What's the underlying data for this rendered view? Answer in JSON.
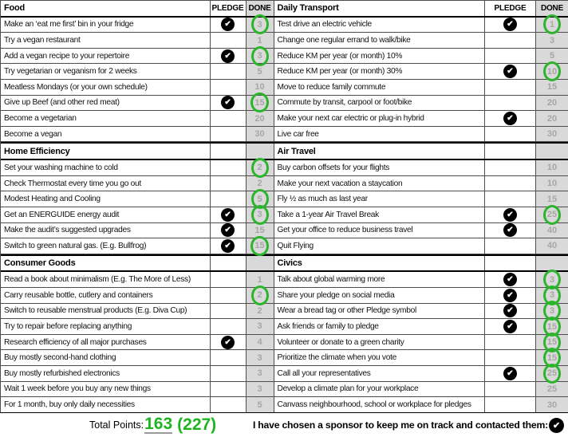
{
  "colors": {
    "green": "#1fb41f",
    "circle_green": "#2db42d",
    "done_column_fill": "#d9d9d9",
    "points_gray": "#a6a6a6",
    "check_black": "#000000"
  },
  "icons": {
    "check": "✔"
  },
  "tables": [
    {
      "name": "left",
      "header": {
        "title": "Food",
        "pledge": "PLEDGE",
        "done": "DONE"
      },
      "rows": [
        {
          "label": "Make an ‘eat me first’ bin in your fridge",
          "pledged": true,
          "points": "3",
          "circled": true
        },
        {
          "label": "Try a vegan restaurant",
          "pledged": false,
          "points": "1",
          "circled": false
        },
        {
          "label": "Add a vegan recipe to your repertoire",
          "pledged": true,
          "points": "3",
          "circled": true
        },
        {
          "label": "Try vegetarian or veganism for 2 weeks",
          "pledged": false,
          "points": "5",
          "circled": false
        },
        {
          "label": "Meatless Mondays (or your own schedule)",
          "pledged": false,
          "points": "10",
          "circled": false
        },
        {
          "label": "Give up Beef (and other red meat)",
          "pledged": true,
          "points": "15",
          "circled": true
        },
        {
          "label": "Become a vegetarian",
          "pledged": false,
          "points": "20",
          "circled": false
        },
        {
          "label": "Become a vegan",
          "pledged": false,
          "points": "30",
          "circled": false
        },
        {
          "section": "Home Efficiency"
        },
        {
          "label": "Set your washing machine to cold",
          "pledged": false,
          "points": "2",
          "circled": true
        },
        {
          "label": "Check Thermostat every time you go out",
          "pledged": false,
          "points": "2",
          "circled": false
        },
        {
          "label": "Modest Heating and Cooling",
          "pledged": false,
          "points": "5",
          "circled": true
        },
        {
          "label": "Get an ENERGUIDE energy audit",
          "pledged": true,
          "points": "3",
          "circled": true
        },
        {
          "label": "Make the audit’s suggested upgrades",
          "pledged": true,
          "points": "15",
          "circled": false
        },
        {
          "label": "Switch to green natural gas. (E.g. Bullfrog)",
          "pledged": true,
          "points": "15",
          "circled": true
        },
        {
          "section": "Consumer Goods"
        },
        {
          "label": "Read a book about minimalism (E.g. The More of Less)",
          "pledged": false,
          "points": "1",
          "circled": false
        },
        {
          "label": "Carry reusable bottle, cutlery and containers",
          "pledged": false,
          "points": "2",
          "circled": true
        },
        {
          "label": "Switch to reusable menstrual products (E.g. Diva Cup)",
          "pledged": false,
          "points": "2",
          "circled": false
        },
        {
          "label": "Try to repair before replacing anything",
          "pledged": false,
          "points": "3",
          "circled": false
        },
        {
          "label": "Research efficiency of all major purchases",
          "pledged": true,
          "points": "4",
          "circled": false
        },
        {
          "label": "Buy mostly second-hand clothing",
          "pledged": false,
          "points": "3",
          "circled": false
        },
        {
          "label": "Buy mostly refurbished electronics",
          "pledged": false,
          "points": "3",
          "circled": false
        },
        {
          "label": "Wait 1 week before you buy any new things",
          "pledged": false,
          "points": "3",
          "circled": false
        },
        {
          "label": "For 1 month, buy only daily necessities",
          "pledged": false,
          "points": "5",
          "circled": false
        }
      ]
    },
    {
      "name": "right",
      "header": {
        "title": "Daily Transport",
        "pledge": "PLEDGE",
        "done": "DONE"
      },
      "rows": [
        {
          "label": "Test drive an electric vehicle",
          "pledged": true,
          "points": "1",
          "circled": true
        },
        {
          "label": "Change one regular errand to walk/bike",
          "pledged": false,
          "points": "3",
          "circled": false
        },
        {
          "label": "Reduce KM per year (or month) 10%",
          "pledged": false,
          "points": "5",
          "circled": false
        },
        {
          "label": "Reduce KM per year (or month) 30%",
          "pledged": true,
          "points": "10",
          "circled": true
        },
        {
          "label": "Move to reduce family commute",
          "pledged": false,
          "points": "15",
          "circled": false
        },
        {
          "label": "Commute by transit, carpool or foot/bike",
          "pledged": false,
          "points": "20",
          "circled": false
        },
        {
          "label": "Make your next car electric or plug-in hybrid",
          "pledged": true,
          "points": "20",
          "circled": false
        },
        {
          "label": "Live car free",
          "pledged": false,
          "points": "30",
          "circled": false
        },
        {
          "section": "Air Travel"
        },
        {
          "label": "Buy carbon offsets for your flights",
          "pledged": false,
          "points": "10",
          "circled": false
        },
        {
          "label": "Make your next vacation a staycation",
          "pledged": false,
          "points": "10",
          "circled": false
        },
        {
          "label": "Fly ½ as much as last year",
          "pledged": false,
          "points": "15",
          "circled": false
        },
        {
          "label": "Take a 1-year Air Travel Break",
          "pledged": true,
          "points": "25",
          "circled": true
        },
        {
          "label": "Get your office to reduce business travel",
          "pledged": true,
          "points": "40",
          "circled": false
        },
        {
          "label": "Quit Flying",
          "pledged": false,
          "points": "40",
          "circled": false
        },
        {
          "section": "Civics"
        },
        {
          "label": "Talk about global warming more",
          "pledged": true,
          "points": "3",
          "circled": true
        },
        {
          "label": "Share your pledge on social media",
          "pledged": true,
          "points": "3",
          "circled": true
        },
        {
          "label": "Wear a bread tag or other Pledge symbol",
          "pledged": true,
          "points": "3",
          "circled": true
        },
        {
          "label": "Ask friends or family to pledge",
          "pledged": true,
          "points": "15",
          "circled": true
        },
        {
          "label": "Volunteer or donate to a green charity",
          "pledged": false,
          "points": "15",
          "circled": true
        },
        {
          "label": "Prioritize the climate when you vote",
          "pledged": false,
          "points": "15",
          "circled": true
        },
        {
          "label": "Call all your representatives",
          "pledged": true,
          "points": "25",
          "circled": true
        },
        {
          "label": "Develop a climate plan for your workplace",
          "pledged": false,
          "points": "25",
          "circled": false
        },
        {
          "label": "Canvass neighbourhood, school or workplace for pledges",
          "pledged": false,
          "points": "30",
          "circled": false
        }
      ]
    }
  ],
  "footer": {
    "total_label": "Total Points:",
    "total_value": "163",
    "total_extra": "(227)",
    "sponsor_label": "I have chosen a sponsor to keep me on track and contacted them:",
    "sponsor_checked": true
  }
}
